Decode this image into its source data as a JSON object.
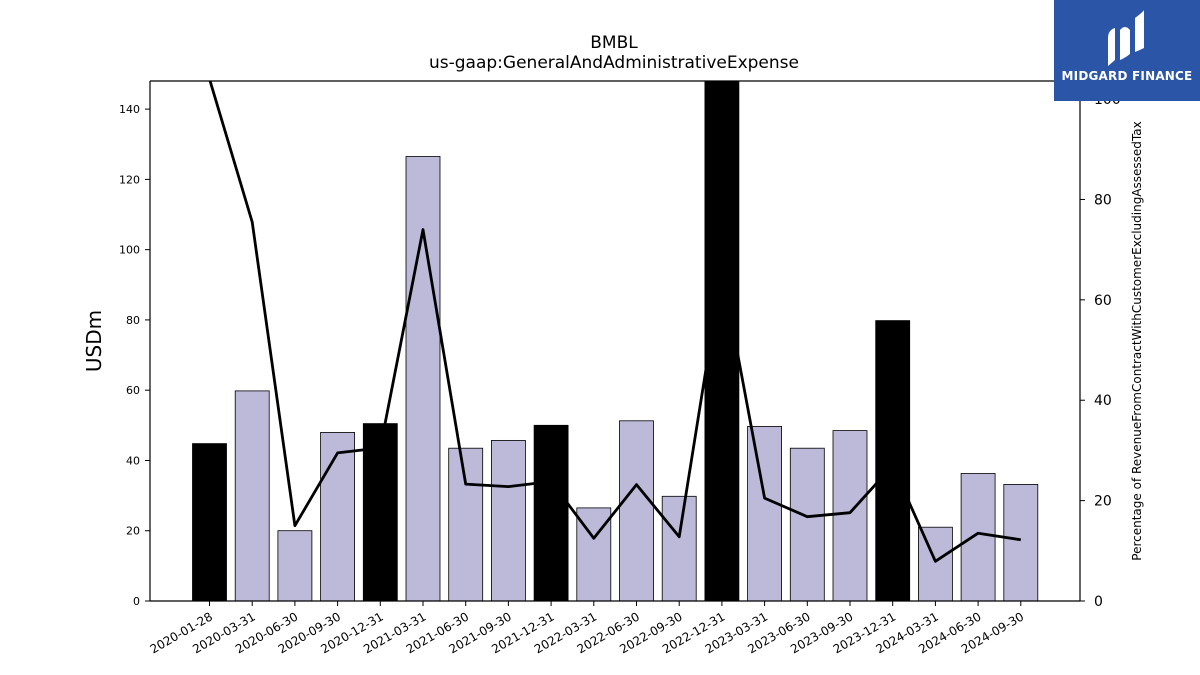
{
  "chart_data": {
    "type": "bar",
    "title": "BMBL",
    "subtitle": "us-gaap:GeneralAndAdministrativeExpense",
    "ylabel": "USDm",
    "y2label": "Percentage of RevenueFromContractWithCustomerExcludingAssessedTax",
    "ylim": [
      0,
      148
    ],
    "y2lim": [
      0,
      103.6
    ],
    "yticks": [
      0,
      20,
      40,
      60,
      80,
      100,
      120,
      140
    ],
    "y2ticks": [
      0,
      20,
      40,
      60,
      80,
      100
    ],
    "grid": false,
    "categories": [
      "2020-01-28",
      "2020-03-31",
      "2020-06-30",
      "2020-09-30",
      "2020-12-31",
      "2021-03-31",
      "2021-06-30",
      "2021-09-30",
      "2021-12-31",
      "2022-03-31",
      "2022-06-30",
      "2022-09-30",
      "2022-12-31",
      "2023-03-31",
      "2023-06-30",
      "2023-09-30",
      "2023-12-31",
      "2024-03-31",
      "2024-06-30",
      "2024-09-30"
    ],
    "series": [
      {
        "kind": "bar",
        "axis": "left",
        "values": [
          44.8,
          59.8,
          20.0,
          48.0,
          50.5,
          126.5,
          43.5,
          45.7,
          50.0,
          26.5,
          51.3,
          29.8,
          148,
          49.7,
          43.5,
          48.5,
          79.8,
          21.0,
          36.3,
          33.2
        ],
        "annual_flags": [
          true,
          false,
          false,
          false,
          true,
          false,
          false,
          false,
          true,
          false,
          false,
          false,
          true,
          false,
          false,
          false,
          true,
          false,
          false,
          false
        ]
      },
      {
        "kind": "line",
        "axis": "right",
        "values": [
          104,
          75.5,
          15,
          29.5,
          30.5,
          74,
          23.3,
          22.8,
          23.8,
          12.5,
          23.2,
          12.8,
          66,
          20.5,
          16.8,
          17.6,
          27,
          7.9,
          13.5,
          12.2
        ]
      }
    ],
    "colors": {
      "quarter_bar": "#bcb9d9",
      "annual_bar": "#000000",
      "line": "#000000",
      "axis": "#000000"
    }
  },
  "logo": {
    "text": "MIDGARD FINANCE",
    "bg": "#2b55a6"
  }
}
